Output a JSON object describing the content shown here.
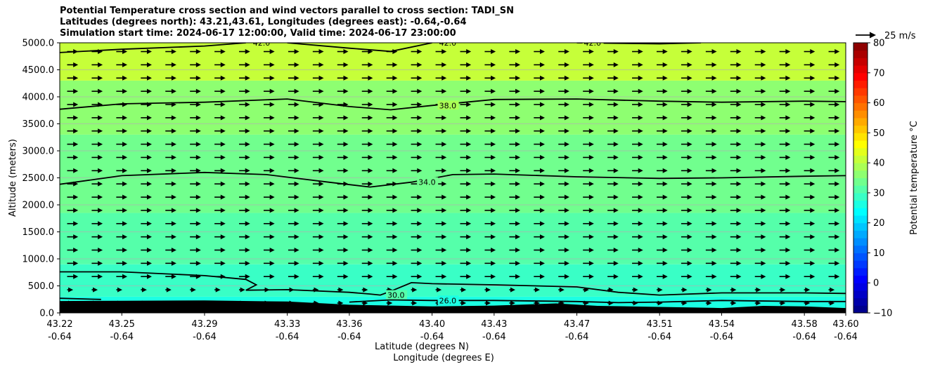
{
  "title_lines": [
    "Potential Temperature cross section and wind vectors parallel to cross section: TADI_SN",
    "Latitudes (degrees north): 43.21,43.61, Longitudes (degrees east): -0.64,-0.64",
    "Simulation start time: 2024-06-17 12:00:00, Valid time: 2024-06-17 23:00:00"
  ],
  "chart_data": {
    "type": "heatmap",
    "subtype": "filled contour cross-section with wind vectors",
    "xlabel_line1": "Latitude (degrees N)",
    "xlabel_line2": "Longitude (degrees E)",
    "ylabel": "Altitude (meters)",
    "x_ticks": [
      {
        "lat": 43.22,
        "label_lat": "43.22",
        "label_lon": "-0.64"
      },
      {
        "lat": 43.25,
        "label_lat": "43.25",
        "label_lon": "-0.64"
      },
      {
        "lat": 43.29,
        "label_lat": "43.29",
        "label_lon": "-0.64"
      },
      {
        "lat": 43.33,
        "label_lat": "43.33",
        "label_lon": "-0.64"
      },
      {
        "lat": 43.36,
        "label_lat": "43.36",
        "label_lon": "-0.64"
      },
      {
        "lat": 43.4,
        "label_lat": "43.40",
        "label_lon": "-0.64"
      },
      {
        "lat": 43.43,
        "label_lat": "43.43",
        "label_lon": "-0.64"
      },
      {
        "lat": 43.47,
        "label_lat": "43.47",
        "label_lon": "-0.64"
      },
      {
        "lat": 43.51,
        "label_lat": "43.51",
        "label_lon": "-0.64"
      },
      {
        "lat": 43.54,
        "label_lat": "43.54",
        "label_lon": "-0.64"
      },
      {
        "lat": 43.58,
        "label_lat": "43.58",
        "label_lon": "-0.64"
      },
      {
        "lat": 43.6,
        "label_lat": "43.60",
        "label_lon": "-0.64"
      }
    ],
    "xlim": [
      43.22,
      43.6
    ],
    "ylim": [
      0,
      5000
    ],
    "y_ticks": [
      0,
      500,
      1000,
      1500,
      2000,
      2500,
      3000,
      3500,
      4000,
      4500,
      5000
    ],
    "y_tick_labels": [
      "0.0",
      "500.0",
      "1000.0",
      "1500.0",
      "2000.0",
      "2500.0",
      "3000.0",
      "3500.0",
      "4000.0",
      "4500.0",
      "5000.0"
    ],
    "grid": true,
    "colorbar": {
      "label": "Potential temperature $^\\circ$C",
      "min": -10,
      "max": 80,
      "step": 2.5,
      "ticks": [
        -10,
        0,
        10,
        20,
        30,
        40,
        50,
        60,
        70,
        80
      ],
      "tick_labels": [
        "−10",
        "0",
        "10",
        "20",
        "30",
        "40",
        "50",
        "60",
        "70",
        "80"
      ],
      "colormap": "jet"
    },
    "field_bands": [
      {
        "alt_from": 0,
        "alt_to": 300,
        "value": 27
      },
      {
        "alt_from": 300,
        "alt_to": 900,
        "value": 29.5
      },
      {
        "alt_from": 900,
        "alt_to": 1850,
        "value": 31
      },
      {
        "alt_from": 1850,
        "alt_to": 3300,
        "value": 33
      },
      {
        "alt_from": 3300,
        "alt_to": 4300,
        "value": 36.5
      },
      {
        "alt_from": 4300,
        "alt_to": 5000,
        "value": 40
      }
    ],
    "contours": [
      {
        "level": 42.0,
        "label": "42.0",
        "points": [
          [
            43.22,
            4820
          ],
          [
            43.25,
            4880
          ],
          [
            43.29,
            4940
          ],
          [
            43.31,
            5000
          ]
        ]
      },
      {
        "level": 42.0,
        "label": "42.0",
        "points": [
          [
            43.33,
            5000
          ],
          [
            43.36,
            4900
          ],
          [
            43.38,
            4840
          ],
          [
            43.4,
            5000
          ]
        ]
      },
      {
        "level": 42.0,
        "label": "42.0",
        "points": [
          [
            43.47,
            5000
          ],
          [
            43.51,
            4980
          ],
          [
            43.53,
            5000
          ]
        ]
      },
      {
        "level": 38.0,
        "label": "38.0",
        "points": [
          [
            43.22,
            3770
          ],
          [
            43.25,
            3870
          ],
          [
            43.29,
            3900
          ],
          [
            43.33,
            3960
          ],
          [
            43.36,
            3820
          ],
          [
            43.38,
            3760
          ],
          [
            43.4,
            3840
          ],
          [
            43.43,
            3950
          ],
          [
            43.47,
            3960
          ],
          [
            43.51,
            3920
          ],
          [
            43.54,
            3900
          ],
          [
            43.58,
            3920
          ],
          [
            43.6,
            3910
          ]
        ]
      },
      {
        "level": 34.0,
        "label": "34.0",
        "points": [
          [
            43.22,
            2380
          ],
          [
            43.25,
            2540
          ],
          [
            43.29,
            2600
          ],
          [
            43.32,
            2560
          ],
          [
            43.35,
            2420
          ],
          [
            43.37,
            2330
          ],
          [
            43.39,
            2420
          ],
          [
            43.41,
            2560
          ],
          [
            43.43,
            2570
          ],
          [
            43.47,
            2520
          ],
          [
            43.51,
            2490
          ],
          [
            43.54,
            2500
          ],
          [
            43.58,
            2530
          ],
          [
            43.6,
            2540
          ]
        ]
      },
      {
        "level": 30.0,
        "label": "30.0",
        "points": [
          [
            43.22,
            760
          ],
          [
            43.25,
            760
          ],
          [
            43.29,
            690
          ],
          [
            43.31,
            620
          ],
          [
            43.315,
            520
          ],
          [
            43.31,
            420
          ],
          [
            43.33,
            430
          ],
          [
            43.36,
            380
          ],
          [
            43.37,
            350
          ],
          [
            43.375,
            330
          ],
          [
            43.38,
            400
          ],
          [
            43.39,
            560
          ],
          [
            43.4,
            540
          ],
          [
            43.43,
            520
          ],
          [
            43.47,
            480
          ],
          [
            43.49,
            380
          ],
          [
            43.51,
            330
          ],
          [
            43.54,
            370
          ],
          [
            43.58,
            370
          ],
          [
            43.6,
            360
          ]
        ]
      },
      {
        "level": 26.0,
        "label": "26.0",
        "points": [
          [
            43.36,
            200
          ],
          [
            43.38,
            240
          ],
          [
            43.4,
            230
          ],
          [
            43.43,
            230
          ],
          [
            43.47,
            210
          ],
          [
            43.49,
            190
          ],
          [
            43.51,
            200
          ],
          [
            43.54,
            230
          ],
          [
            43.58,
            210
          ],
          [
            43.6,
            210
          ]
        ]
      },
      {
        "level": 26.0,
        "label": "26.0",
        "points": [
          [
            43.22,
            270
          ],
          [
            43.24,
            250
          ]
        ]
      }
    ],
    "terrain": [
      [
        43.22,
        220
      ],
      [
        43.25,
        225
      ],
      [
        43.29,
        230
      ],
      [
        43.33,
        210
      ],
      [
        43.36,
        150
      ],
      [
        43.4,
        120
      ],
      [
        43.43,
        135
      ],
      [
        43.46,
        175
      ],
      [
        43.48,
        130
      ],
      [
        43.51,
        110
      ],
      [
        43.54,
        90
      ],
      [
        43.56,
        130
      ],
      [
        43.58,
        120
      ],
      [
        43.6,
        90
      ]
    ],
    "wind": {
      "u_ms": 14,
      "w_ms": 0,
      "quiver_key": "25 m/s",
      "quiver_key_speed": 25,
      "columns": 32,
      "rows": 20
    }
  }
}
